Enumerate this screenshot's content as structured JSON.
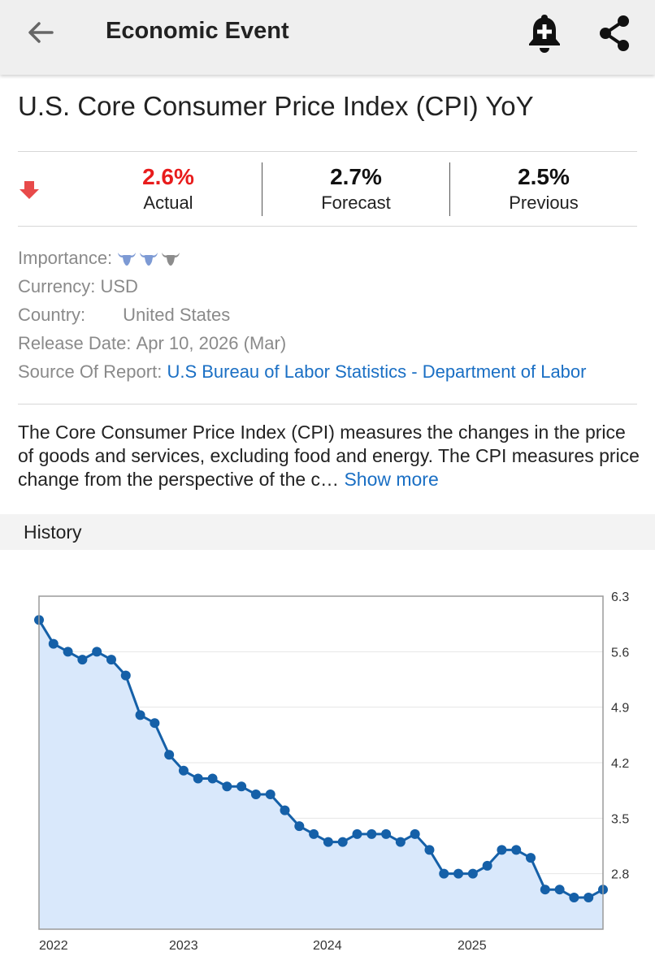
{
  "header": {
    "title": "Economic Event",
    "back_icon": "arrow-left-icon",
    "bell_icon": "bell-plus-icon",
    "share_icon": "share-icon"
  },
  "event": {
    "title": "U.S. Core Consumer Price Index (CPI) YoY",
    "trend_icon": "arrow-down-icon",
    "trend_color": "#e84a4a",
    "actual": {
      "value": "2.6%",
      "label": "Actual",
      "color": "#e81c1c"
    },
    "forecast": {
      "value": "2.7%",
      "label": "Forecast"
    },
    "previous": {
      "value": "2.5%",
      "label": "Previous"
    }
  },
  "details": {
    "importance_label": "Importance:",
    "importance_level": 2,
    "importance_max": 3,
    "importance_icon": "bull-icon",
    "currency_label": "Currency:",
    "currency_value": "USD",
    "country_label": "Country:",
    "country_value": "United States",
    "country_flag_icon": "us-flag-icon",
    "release_label": "Release Date:",
    "release_value": "Apr 10, 2026 (Mar)",
    "source_label": "Source Of Report:",
    "source_value": "U.S Bureau of Labor Statistics - Department of Labor"
  },
  "description": {
    "text": "The Core Consumer Price Index (CPI) measures the changes in the price of goods and services, excluding food and energy. The CPI measures price change from the perspective of the c…",
    "show_more": "Show more"
  },
  "history": {
    "label": "History"
  },
  "chart_data": {
    "type": "area",
    "x_tick_labels": [
      "2022",
      "2023",
      "2024",
      "2025"
    ],
    "y_ticks": [
      "6.3",
      "5.6",
      "4.9",
      "4.2",
      "3.5",
      "2.8"
    ],
    "ylim": [
      2.1,
      6.3
    ],
    "y_axis_side": "right",
    "line_color": "#1560a8",
    "fill_color": "#d9e8fb",
    "series": [
      {
        "values": [
          6.0,
          5.7,
          5.6,
          5.5,
          5.6,
          5.5,
          5.3,
          4.8,
          4.7,
          4.3,
          4.1,
          4.0,
          4.0,
          3.9,
          3.9,
          3.8,
          3.8,
          3.6,
          3.4,
          3.3,
          3.2,
          3.2,
          3.3,
          3.3,
          3.3,
          3.2,
          3.3,
          3.1,
          2.8,
          2.8,
          2.8,
          2.9,
          3.1,
          3.1,
          3.0,
          2.6,
          2.6,
          2.5,
          2.5,
          2.6
        ]
      }
    ]
  }
}
